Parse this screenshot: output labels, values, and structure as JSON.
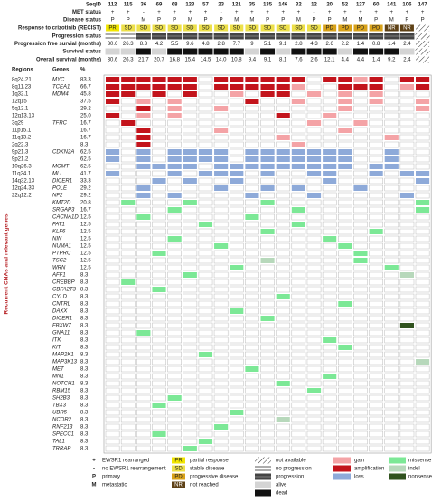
{
  "samples": {
    "label": "SeqID",
    "ids": [
      "112",
      "115",
      "36",
      "69",
      "68",
      "123",
      "57",
      "23",
      "121",
      "35",
      "135",
      "146",
      "32",
      "12",
      "20",
      "52",
      "127",
      "60",
      "141",
      "106",
      "147"
    ]
  },
  "met_status": {
    "label": "MET status",
    "values": [
      "+",
      "+",
      "-",
      "+",
      "+",
      "+",
      "+",
      "-",
      "+",
      "+",
      "+",
      "+",
      "+",
      "-",
      "+",
      "+",
      "+",
      "+",
      "+",
      "+",
      "+"
    ]
  },
  "disease_status": {
    "label": "Disease status",
    "values": [
      "P",
      "P",
      "M",
      "P",
      "P",
      "M",
      "P",
      "P",
      "M",
      "M",
      "P",
      "P",
      "M",
      "P",
      "P",
      "M",
      "M",
      "P",
      "M",
      "P",
      "P"
    ]
  },
  "response": {
    "label": "Response to crizotinib (RECIST)",
    "values": [
      "PR",
      "SD",
      "SD",
      "SD",
      "SD",
      "SD",
      "SD",
      "SD",
      "SD",
      "SD",
      "SD",
      "SD",
      "SD",
      "SD",
      "PD",
      "PD",
      "PD",
      "PD",
      "NR",
      "NR",
      null
    ]
  },
  "progression_status": {
    "label": "Progression status",
    "codes": [
      "N",
      "N",
      "P",
      "P",
      "P",
      "P",
      "P",
      "P",
      "P",
      "P",
      "P",
      "P",
      "P",
      "P",
      "P",
      "P",
      "P",
      "P",
      "P",
      "P",
      "X"
    ]
  },
  "pfs": {
    "label": "Progression free survial (months)",
    "values": [
      "30.6",
      "26.3",
      "8.3",
      "4.2",
      "5.5",
      "9.6",
      "4.8",
      "2.8",
      "7.7",
      "9",
      "5.1",
      "9.1",
      "2.8",
      "4.3",
      "2.6",
      "2.2",
      "1.4",
      "0.8",
      "1.4",
      "2.4",
      null
    ]
  },
  "survival_status": {
    "label": "Survival status",
    "codes": [
      "A",
      "A",
      "D",
      "A",
      "D",
      "D",
      "D",
      "D",
      "D",
      "A",
      "D",
      "A",
      "D",
      "D",
      "D",
      "A",
      "D",
      "D",
      "D",
      "A",
      "X"
    ]
  },
  "os": {
    "label": "Overall survival (months)",
    "values": [
      "30.6",
      "26.3",
      "21.7",
      "20.7",
      "16.8",
      "15.4",
      "14.5",
      "14.0",
      "10.8",
      "9.4",
      "9.1",
      "8.1",
      "7.6",
      "2.6",
      "12.1",
      "4.4",
      "4.4",
      "1.4",
      "9.2",
      "2.4",
      null
    ]
  },
  "table": {
    "headers": [
      "Regions",
      "Genes",
      "%"
    ],
    "side_label": "Recurrent CNAs and relevant genes",
    "rows": [
      {
        "region": "8q24.21",
        "gene": "MYC",
        "pct": "83.3",
        "cells": "aaaaaa.aaaaaa.aaga.aa"
      },
      {
        "region": "8q11.23",
        "gene": "TCEA1",
        "pct": "66.7",
        "cells": "aaaaaa.aaaaag..aaa.ga"
      },
      {
        "region": "1q32.1",
        "gene": "MDM4",
        "pct": "45.8",
        "cells": "aa.a.a..g.aa.g.g.g..."
      },
      {
        "region": "12q15",
        "gene": null,
        "pct": "37.5",
        "cells": "a.g.g....a..g..g.g..g"
      },
      {
        "region": "5q12.1",
        "gene": null,
        "pct": "29.2",
        "cells": "..a.g..g.......g....g"
      },
      {
        "region": "12q13.13",
        "gene": null,
        "pct": "25.0",
        "cells": "a.g.g......a..g......"
      },
      {
        "region": "3q29",
        "gene": "TFRC",
        "pct": "16.7",
        "cells": ".a...........g..g...."
      },
      {
        "region": "11p15.1",
        "gene": null,
        "pct": "16.7",
        "cells": "..a....g.......g....."
      },
      {
        "region": "11q13.2",
        "gene": null,
        "pct": "16.7",
        "cells": "..a........g......g.."
      },
      {
        "region": "2q22.3",
        "gene": null,
        "pct": "8.3",
        "cells": "..a.........g........"
      },
      {
        "region": "9p21.3",
        "gene": "CDKN2A",
        "pct": "62.5",
        "cells": "l.l.llll.lllllll..l.."
      },
      {
        "region": "9p21.2",
        "gene": null,
        "pct": "62.5",
        "cells": "l.l.llll.lllllll..l.."
      },
      {
        "region": "10q26.3",
        "gene": "MGMT",
        "pct": "62.5",
        "cells": "..llll.lllllllll.ll.."
      },
      {
        "region": "11q24.1",
        "gene": "MLL",
        "pct": "41.7",
        "cells": "l...l.lll.l..ll..l.ll"
      },
      {
        "region": "14q32.13",
        "gene": "DICER1",
        "pct": "33.3",
        "cells": "...l.l..l.....l.....l"
      },
      {
        "region": "12q24.33",
        "gene": "POLE",
        "pct": "29.2",
        "cells": "..l....l..l.l...l...."
      },
      {
        "region": "22q12.2",
        "gene": "NF2",
        "pct": "29.2",
        "cells": "..l.l....l...l.....l."
      },
      {
        "region": null,
        "gene": "KMT2D",
        "pct": "20.8",
        "cells": ".m...m....m.........m"
      },
      {
        "region": null,
        "gene": "SRGAP3",
        "pct": "16.7",
        "cells": "....m.......m.......m"
      },
      {
        "region": null,
        "gene": "CACNA1D",
        "pct": "12.5",
        "cells": "..m......m..........."
      },
      {
        "region": null,
        "gene": "FAT1",
        "pct": "12.5",
        "cells": "......m.....m........"
      },
      {
        "region": null,
        "gene": "KLF6",
        "pct": "12.5",
        "cells": "..........m......m..."
      },
      {
        "region": null,
        "gene": "NIN",
        "pct": "12.5",
        "cells": "....m.........m......"
      },
      {
        "region": null,
        "gene": "NUMA1",
        "pct": "12.5",
        "cells": ".......m.......m....."
      },
      {
        "region": null,
        "gene": "PTPRC",
        "pct": "12.5",
        "cells": "...m............m...."
      },
      {
        "region": null,
        "gene": "TSC2",
        "pct": "12.5",
        "cells": "..........i.....m...."
      },
      {
        "region": null,
        "gene": "WRN",
        "pct": "12.5",
        "cells": "........m.........m.."
      },
      {
        "region": null,
        "gene": "AFF1",
        "pct": "8.3",
        "cells": ".....m.............i."
      },
      {
        "region": null,
        "gene": "CREBBP",
        "pct": "8.3",
        "cells": ".m..................."
      },
      {
        "region": null,
        "gene": "CBFA2T3",
        "pct": "8.3",
        "cells": "...m................."
      },
      {
        "region": null,
        "gene": "CYLD",
        "pct": "8.3",
        "cells": "...........m........."
      },
      {
        "region": null,
        "gene": "CNTRL",
        "pct": "8.3",
        "cells": "...............m....."
      },
      {
        "region": null,
        "gene": "DAXX",
        "pct": "8.3",
        "cells": "........m............"
      },
      {
        "region": null,
        "gene": "DICER1",
        "pct": "8.3",
        "cells": "..........m.........."
      },
      {
        "region": null,
        "gene": "FBXW7",
        "pct": "8.3",
        "cells": "...................n."
      },
      {
        "region": null,
        "gene": "GNA11",
        "pct": "8.3",
        "cells": "..m.................."
      },
      {
        "region": null,
        "gene": "ITK",
        "pct": "8.3",
        "cells": "..............m......"
      },
      {
        "region": null,
        "gene": "KIT",
        "pct": "8.3",
        "cells": "...............m....."
      },
      {
        "region": null,
        "gene": "MAP2K1",
        "pct": "8.3",
        "cells": "......m.............."
      },
      {
        "region": null,
        "gene": "MAP3K13",
        "pct": "8.3",
        "cells": "....................i"
      },
      {
        "region": null,
        "gene": "MET",
        "pct": "8.3",
        "cells": ".........m..........."
      },
      {
        "region": null,
        "gene": "MN1",
        "pct": "8.3",
        "cells": "..............m......"
      },
      {
        "region": null,
        "gene": "NOTCH1",
        "pct": "8.3",
        "cells": "...........m........."
      },
      {
        "region": null,
        "gene": "RBM15",
        "pct": "8.3",
        "cells": ".............m......."
      },
      {
        "region": null,
        "gene": "SH2B3",
        "pct": "8.3",
        "cells": "....m................"
      },
      {
        "region": null,
        "gene": "TBX3",
        "pct": "8.3",
        "cells": "...m................."
      },
      {
        "region": null,
        "gene": "UBR5",
        "pct": "8.3",
        "cells": "........m............"
      },
      {
        "region": null,
        "gene": "NCOR2",
        "pct": "8.3",
        "cells": "...........i........."
      },
      {
        "region": null,
        "gene": "RNF213",
        "pct": "8.3",
        "cells": ".......m............."
      },
      {
        "region": null,
        "gene": "SPECC1",
        "pct": "8.3",
        "cells": "...m................."
      },
      {
        "region": null,
        "gene": "TAL1",
        "pct": "8.3",
        "cells": "......m.............."
      },
      {
        "region": null,
        "gene": "TRRAP",
        "pct": "8.3",
        "cells": ".....m..............."
      }
    ]
  },
  "legend": {
    "markers": [
      {
        "symbol": "+",
        "text": "EWSR1 rearranged"
      },
      {
        "symbol": "-",
        "text": "no EWSR1 rearrangement"
      },
      {
        "symbol": "P",
        "text": "primary"
      },
      {
        "symbol": "M",
        "text": "metastatic"
      }
    ],
    "response": [
      {
        "code": "PR",
        "text": "partial response"
      },
      {
        "code": "SD",
        "text": "stable disease"
      },
      {
        "code": "PD",
        "text": "progressive disease"
      },
      {
        "code": "NR",
        "text": "not reached"
      }
    ],
    "status": [
      {
        "key": "X",
        "text": "not available"
      },
      {
        "key": "N",
        "text": "no progression"
      },
      {
        "key": "P",
        "text": "progression"
      },
      {
        "key": "A",
        "text": "alive"
      },
      {
        "key": "D",
        "text": "dead"
      }
    ],
    "cna": [
      {
        "key": "g",
        "text": "gain"
      },
      {
        "key": "a",
        "text": "amplification"
      },
      {
        "key": "l",
        "text": "loss"
      }
    ],
    "mutation": [
      {
        "key": "m",
        "text": "missense"
      },
      {
        "key": "i",
        "text": "indel"
      },
      {
        "key": "n",
        "text": "nonsense"
      }
    ]
  }
}
